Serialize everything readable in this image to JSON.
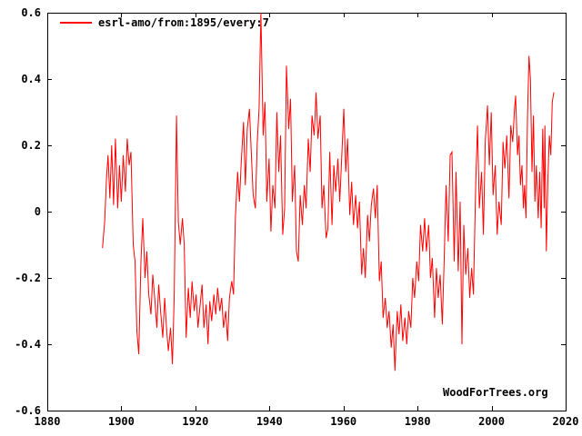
{
  "colors": {
    "background": "#ffffff",
    "frame": "#000000",
    "text": "#000000",
    "series_red": "#ff0000"
  },
  "legend_label": "esrl-amo/from:1895/every:7",
  "watermark": "WoodForTrees.org",
  "chart_data": {
    "type": "line",
    "title": "",
    "xlabel": "",
    "ylabel": "",
    "grid": false,
    "legend_position": "top-left",
    "xlim": [
      1880,
      2020
    ],
    "ylim": [
      -0.6,
      0.6
    ],
    "x_ticks": [
      1880,
      1900,
      1920,
      1940,
      1960,
      1980,
      2000,
      2020
    ],
    "x_tick_labels": [
      "1880",
      "1900",
      "1920",
      "1940",
      "1960",
      "1980",
      "2000",
      "2020"
    ],
    "y_ticks": [
      0.6,
      0.4,
      0.2,
      0,
      -0.2,
      -0.4,
      -0.6
    ],
    "y_tick_labels": [
      "0.6",
      "0.4",
      "0.2",
      "0",
      "-0.2",
      "-0.4",
      "-0.6"
    ],
    "series": [
      {
        "name": "esrl-amo/from:1895/every:7",
        "color": "#ff0000",
        "points": [
          [
            1894.9,
            -0.11
          ],
          [
            1895.5,
            -0.03
          ],
          [
            1896.0,
            0.1
          ],
          [
            1896.4,
            0.17
          ],
          [
            1896.9,
            0.04
          ],
          [
            1897.4,
            0.2
          ],
          [
            1897.9,
            0.02
          ],
          [
            1898.4,
            0.22
          ],
          [
            1899.0,
            0.01
          ],
          [
            1899.5,
            0.14
          ],
          [
            1900.0,
            0.03
          ],
          [
            1900.5,
            0.17
          ],
          [
            1901.1,
            0.06
          ],
          [
            1901.6,
            0.22
          ],
          [
            1902.1,
            0.14
          ],
          [
            1902.6,
            0.18
          ],
          [
            1903.2,
            -0.1
          ],
          [
            1903.7,
            -0.15
          ],
          [
            1904.2,
            -0.36
          ],
          [
            1904.7,
            -0.43
          ],
          [
            1905.3,
            -0.15
          ],
          [
            1905.8,
            -0.02
          ],
          [
            1906.4,
            -0.2
          ],
          [
            1906.9,
            -0.12
          ],
          [
            1907.4,
            -0.25
          ],
          [
            1908.0,
            -0.31
          ],
          [
            1908.5,
            -0.19
          ],
          [
            1909.0,
            -0.26
          ],
          [
            1909.6,
            -0.35
          ],
          [
            1910.1,
            -0.22
          ],
          [
            1910.6,
            -0.3
          ],
          [
            1911.2,
            -0.38
          ],
          [
            1911.7,
            -0.26
          ],
          [
            1912.2,
            -0.35
          ],
          [
            1912.7,
            -0.42
          ],
          [
            1913.3,
            -0.35
          ],
          [
            1913.8,
            -0.46
          ],
          [
            1914.3,
            -0.25
          ],
          [
            1914.9,
            0.29
          ],
          [
            1915.4,
            -0.03
          ],
          [
            1915.9,
            -0.1
          ],
          [
            1916.5,
            -0.02
          ],
          [
            1917.0,
            -0.1
          ],
          [
            1917.5,
            -0.38
          ],
          [
            1918.1,
            -0.23
          ],
          [
            1918.6,
            -0.32
          ],
          [
            1919.1,
            -0.21
          ],
          [
            1919.7,
            -0.3
          ],
          [
            1920.2,
            -0.25
          ],
          [
            1920.7,
            -0.35
          ],
          [
            1921.3,
            -0.28
          ],
          [
            1921.8,
            -0.22
          ],
          [
            1922.3,
            -0.35
          ],
          [
            1922.9,
            -0.28
          ],
          [
            1923.4,
            -0.4
          ],
          [
            1923.9,
            -0.27
          ],
          [
            1924.4,
            -0.33
          ],
          [
            1925.0,
            -0.25
          ],
          [
            1925.5,
            -0.31
          ],
          [
            1926.0,
            -0.23
          ],
          [
            1926.6,
            -0.3
          ],
          [
            1927.1,
            -0.26
          ],
          [
            1927.6,
            -0.35
          ],
          [
            1928.2,
            -0.3
          ],
          [
            1928.7,
            -0.39
          ],
          [
            1929.2,
            -0.26
          ],
          [
            1929.8,
            -0.21
          ],
          [
            1930.3,
            -0.25
          ],
          [
            1930.8,
            -0.02
          ],
          [
            1931.4,
            0.12
          ],
          [
            1931.9,
            0.03
          ],
          [
            1932.4,
            0.15
          ],
          [
            1933.0,
            0.27
          ],
          [
            1933.5,
            0.08
          ],
          [
            1934.0,
            0.25
          ],
          [
            1934.6,
            0.31
          ],
          [
            1935.1,
            0.18
          ],
          [
            1935.6,
            0.05
          ],
          [
            1936.2,
            0.01
          ],
          [
            1936.7,
            0.21
          ],
          [
            1937.2,
            0.31
          ],
          [
            1937.7,
            0.6
          ],
          [
            1938.3,
            0.23
          ],
          [
            1938.8,
            0.33
          ],
          [
            1939.3,
            0.03
          ],
          [
            1939.9,
            0.16
          ],
          [
            1940.4,
            -0.06
          ],
          [
            1940.9,
            0.08
          ],
          [
            1941.5,
            0.01
          ],
          [
            1942.0,
            0.3
          ],
          [
            1942.5,
            0.12
          ],
          [
            1943.0,
            0.23
          ],
          [
            1943.6,
            -0.07
          ],
          [
            1944.1,
            0.01
          ],
          [
            1944.6,
            0.44
          ],
          [
            1945.2,
            0.25
          ],
          [
            1945.7,
            0.34
          ],
          [
            1946.2,
            0.03
          ],
          [
            1946.8,
            0.14
          ],
          [
            1947.3,
            -0.12
          ],
          [
            1947.8,
            -0.15
          ],
          [
            1948.3,
            0.05
          ],
          [
            1948.9,
            -0.04
          ],
          [
            1949.4,
            0.08
          ],
          [
            1949.9,
            0.01
          ],
          [
            1950.5,
            0.22
          ],
          [
            1951.0,
            0.12
          ],
          [
            1951.5,
            0.29
          ],
          [
            1952.1,
            0.23
          ],
          [
            1952.6,
            0.36
          ],
          [
            1953.1,
            0.22
          ],
          [
            1953.7,
            0.29
          ],
          [
            1954.2,
            0.01
          ],
          [
            1954.7,
            0.08
          ],
          [
            1955.3,
            -0.08
          ],
          [
            1955.8,
            -0.05
          ],
          [
            1956.3,
            0.18
          ],
          [
            1956.9,
            -0.04
          ],
          [
            1957.4,
            0.14
          ],
          [
            1957.9,
            0.06
          ],
          [
            1958.5,
            0.16
          ],
          [
            1959.0,
            0.03
          ],
          [
            1959.5,
            0.16
          ],
          [
            1960.1,
            0.31
          ],
          [
            1960.6,
            0.12
          ],
          [
            1961.1,
            0.22
          ],
          [
            1961.7,
            -0.01
          ],
          [
            1962.2,
            0.09
          ],
          [
            1962.7,
            -0.04
          ],
          [
            1963.3,
            0.05
          ],
          [
            1963.8,
            -0.05
          ],
          [
            1964.3,
            0.03
          ],
          [
            1964.9,
            -0.19
          ],
          [
            1965.4,
            -0.11
          ],
          [
            1965.9,
            -0.2
          ],
          [
            1966.5,
            -0.01
          ],
          [
            1967.0,
            -0.09
          ],
          [
            1967.5,
            0.02
          ],
          [
            1968.1,
            0.07
          ],
          [
            1968.6,
            -0.02
          ],
          [
            1969.1,
            0.08
          ],
          [
            1969.7,
            -0.21
          ],
          [
            1970.2,
            -0.15
          ],
          [
            1970.7,
            -0.32
          ],
          [
            1971.3,
            -0.26
          ],
          [
            1971.8,
            -0.35
          ],
          [
            1972.3,
            -0.3
          ],
          [
            1972.9,
            -0.41
          ],
          [
            1973.4,
            -0.34
          ],
          [
            1973.9,
            -0.48
          ],
          [
            1974.5,
            -0.3
          ],
          [
            1975.0,
            -0.37
          ],
          [
            1975.5,
            -0.28
          ],
          [
            1976.0,
            -0.39
          ],
          [
            1976.6,
            -0.32
          ],
          [
            1977.1,
            -0.4
          ],
          [
            1977.6,
            -0.3
          ],
          [
            1978.2,
            -0.35
          ],
          [
            1978.7,
            -0.2
          ],
          [
            1979.2,
            -0.26
          ],
          [
            1979.8,
            -0.15
          ],
          [
            1980.3,
            -0.21
          ],
          [
            1980.8,
            -0.04
          ],
          [
            1981.4,
            -0.12
          ],
          [
            1981.9,
            -0.02
          ],
          [
            1982.4,
            -0.12
          ],
          [
            1983.0,
            -0.04
          ],
          [
            1983.5,
            -0.2
          ],
          [
            1984.0,
            -0.14
          ],
          [
            1984.6,
            -0.32
          ],
          [
            1985.1,
            -0.17
          ],
          [
            1985.6,
            -0.26
          ],
          [
            1986.1,
            -0.19
          ],
          [
            1986.7,
            -0.34
          ],
          [
            1987.2,
            -0.14
          ],
          [
            1987.7,
            0.08
          ],
          [
            1988.3,
            -0.09
          ],
          [
            1988.8,
            0.17
          ],
          [
            1989.3,
            0.18
          ],
          [
            1989.9,
            -0.15
          ],
          [
            1990.4,
            0.12
          ],
          [
            1991.0,
            -0.18
          ],
          [
            1991.5,
            0.03
          ],
          [
            1992.0,
            -0.4
          ],
          [
            1992.5,
            -0.04
          ],
          [
            1993.0,
            -0.19
          ],
          [
            1993.6,
            -0.11
          ],
          [
            1994.1,
            -0.26
          ],
          [
            1994.6,
            -0.17
          ],
          [
            1995.1,
            -0.25
          ],
          [
            1995.7,
            0.08
          ],
          [
            1996.2,
            0.26
          ],
          [
            1996.7,
            0.01
          ],
          [
            1997.3,
            0.12
          ],
          [
            1997.8,
            -0.07
          ],
          [
            1998.3,
            0.21
          ],
          [
            1998.9,
            0.32
          ],
          [
            1999.4,
            0.14
          ],
          [
            1999.9,
            0.3
          ],
          [
            2000.4,
            0.05
          ],
          [
            2001.0,
            0.14
          ],
          [
            2001.5,
            -0.07
          ],
          [
            2002.0,
            0.03
          ],
          [
            2002.6,
            -0.04
          ],
          [
            2003.1,
            0.21
          ],
          [
            2003.6,
            0.13
          ],
          [
            2004.1,
            0.23
          ],
          [
            2004.7,
            0.04
          ],
          [
            2005.2,
            0.26
          ],
          [
            2005.7,
            0.21
          ],
          [
            2006.2,
            0.31
          ],
          [
            2006.5,
            0.35
          ],
          [
            2007.0,
            0.17
          ],
          [
            2007.4,
            0.23
          ],
          [
            2007.8,
            0.08
          ],
          [
            2008.2,
            0.14
          ],
          [
            2008.6,
            0.01
          ],
          [
            2008.9,
            0.08
          ],
          [
            2009.3,
            -0.02
          ],
          [
            2009.7,
            0.29
          ],
          [
            2010.1,
            0.47
          ],
          [
            2010.5,
            0.4
          ],
          [
            2010.9,
            0.12
          ],
          [
            2011.3,
            0.29
          ],
          [
            2011.7,
            0.03
          ],
          [
            2012.1,
            0.14
          ],
          [
            2012.6,
            -0.02
          ],
          [
            2013.0,
            0.12
          ],
          [
            2013.4,
            -0.05
          ],
          [
            2013.8,
            0.25
          ],
          [
            2014.2,
            0.01
          ],
          [
            2014.4,
            0.26
          ],
          [
            2014.8,
            -0.12
          ],
          [
            2015.2,
            0.1
          ],
          [
            2015.6,
            0.23
          ],
          [
            2016.0,
            0.17
          ],
          [
            2016.4,
            0.33
          ],
          [
            2016.8,
            0.36
          ]
        ]
      }
    ]
  }
}
